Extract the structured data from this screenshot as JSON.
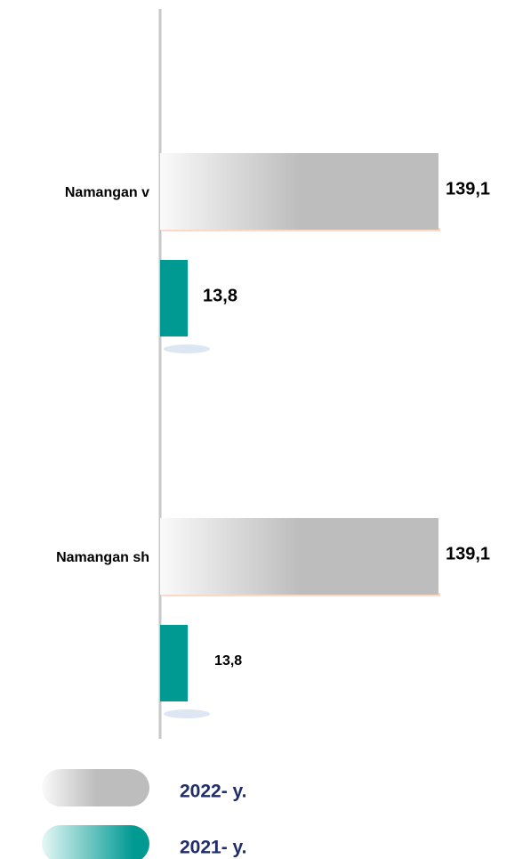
{
  "chart_data": {
    "type": "barh",
    "categories": [
      "Namangan v",
      "Namangan sh"
    ],
    "series": [
      {
        "name": "2022- y.",
        "color": "#bdbdbd",
        "values": [
          139.1,
          139.1
        ],
        "value_labels": [
          "139,1",
          "139,1"
        ]
      },
      {
        "name": "2021- y.",
        "color": "#009a93",
        "values": [
          13.8,
          13.8
        ],
        "value_labels": [
          "13,8",
          "13,8"
        ]
      }
    ]
  }
}
